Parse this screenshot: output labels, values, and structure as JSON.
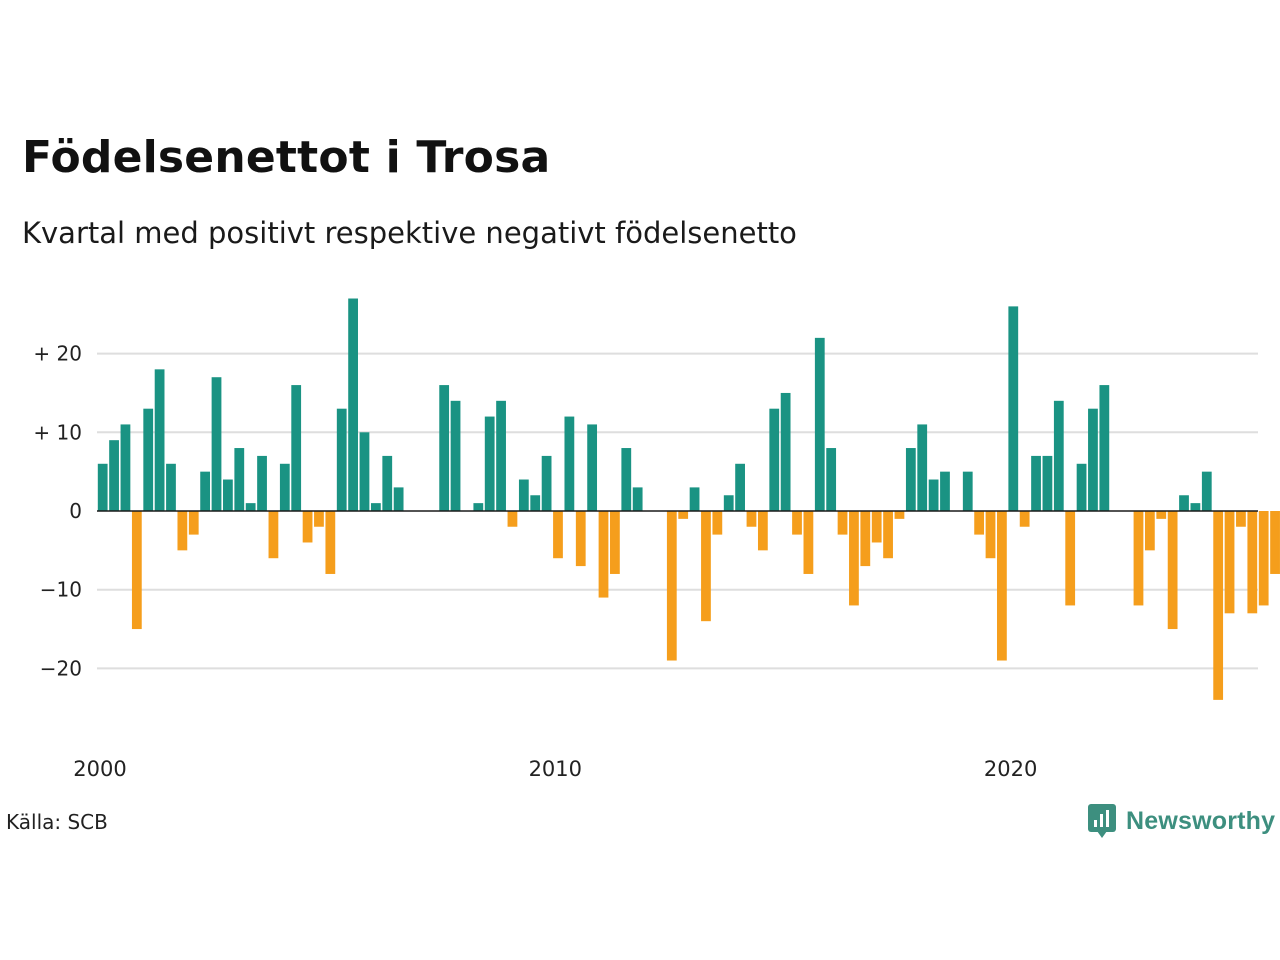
{
  "header": {
    "title": "Födelsenettot i Trosa",
    "subtitle": "Kvartal med positivt respektive negativt födelsenetto"
  },
  "footer": {
    "source": "Källa: SCB",
    "brand": "Newsworthy",
    "brand_icon": "chart-speech-bubble-icon"
  },
  "colors": {
    "positive": "#1a9383",
    "negative": "#f59e1c",
    "grid": "#dedede",
    "zero_line": "#1a1a1a",
    "brand": "#3d8f7f"
  },
  "chart_data": {
    "type": "bar",
    "title": "Födelsenettot i Trosa",
    "subtitle": "Kvartal med positivt respektive negativt födelsenetto",
    "xlabel": "",
    "ylabel": "",
    "ylim": [
      -30,
      30
    ],
    "xlim": [
      2000.0,
      2025.5
    ],
    "grid": true,
    "x_ticks": [
      {
        "value": 2000,
        "label": "2000"
      },
      {
        "value": 2010,
        "label": "2010"
      },
      {
        "value": 2020,
        "label": "2020"
      }
    ],
    "y_ticks": [
      {
        "value": 20,
        "label": "+ 20"
      },
      {
        "value": 10,
        "label": "+ 10"
      },
      {
        "value": 0,
        "label": "0"
      },
      {
        "value": -10,
        "label": "−10"
      },
      {
        "value": -20,
        "label": "−20"
      }
    ],
    "series": [
      {
        "start_year": 2000,
        "values": [
          6,
          9,
          11,
          -15,
          13,
          18,
          6,
          -5,
          -3,
          5,
          17,
          4,
          8,
          1,
          7,
          -6,
          6,
          16,
          -4,
          -2,
          -8,
          13,
          27,
          10,
          1,
          7,
          3,
          0,
          0,
          0,
          16,
          14,
          0,
          1,
          12,
          14,
          -2,
          4,
          2,
          7,
          -6,
          12,
          -7,
          11,
          -11,
          -8,
          8,
          3,
          0,
          0,
          -19,
          -1,
          3,
          -14,
          -3,
          2,
          6,
          -2,
          -5,
          13,
          15,
          -3,
          -8,
          22,
          8,
          -3,
          -12,
          -7,
          -4,
          -6,
          -1,
          8,
          11,
          4,
          5,
          0,
          5,
          -3,
          -6,
          -19,
          26,
          -2,
          7,
          7,
          14,
          -12,
          6,
          13,
          16,
          0,
          0,
          -12,
          -5,
          -1,
          -15,
          2,
          1,
          5,
          -24,
          -13,
          -2,
          -13,
          -12,
          -8
        ]
      }
    ]
  }
}
